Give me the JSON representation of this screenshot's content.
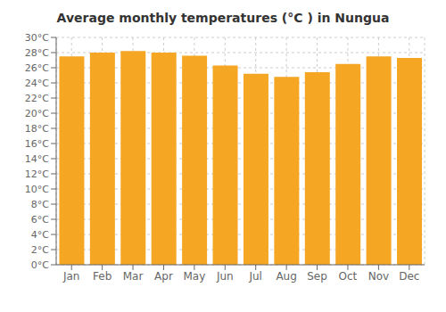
{
  "chart_data": {
    "type": "bar",
    "title": "Average monthly temperatures (°C ) in Nungua",
    "categories": [
      "Jan",
      "Feb",
      "Mar",
      "Apr",
      "May",
      "Jun",
      "Jul",
      "Aug",
      "Sep",
      "Oct",
      "Nov",
      "Dec"
    ],
    "values": [
      27.5,
      28.0,
      28.2,
      28.0,
      27.6,
      26.3,
      25.2,
      24.8,
      25.4,
      26.5,
      27.5,
      27.3
    ],
    "color": "#F5A623",
    "ylim": [
      0,
      30
    ],
    "yticks": [
      {
        "value": 0,
        "label": "0°C"
      },
      {
        "value": 2,
        "label": "2°C"
      },
      {
        "value": 4,
        "label": "4°C"
      },
      {
        "value": 6,
        "label": "6°C"
      },
      {
        "value": 8,
        "label": "8°C"
      },
      {
        "value": 10,
        "label": "10°C"
      },
      {
        "value": 12,
        "label": "12°C"
      },
      {
        "value": 14,
        "label": "14°C"
      },
      {
        "value": 16,
        "label": "16°C"
      },
      {
        "value": 18,
        "label": "18°C"
      },
      {
        "value": 20,
        "label": "20°C"
      },
      {
        "value": 22,
        "label": "22°C"
      },
      {
        "value": 24,
        "label": "24°C"
      },
      {
        "value": 26,
        "label": "26°C"
      },
      {
        "value": 28,
        "label": "28°C"
      },
      {
        "value": 30,
        "label": "30°C"
      }
    ],
    "grid": true
  }
}
